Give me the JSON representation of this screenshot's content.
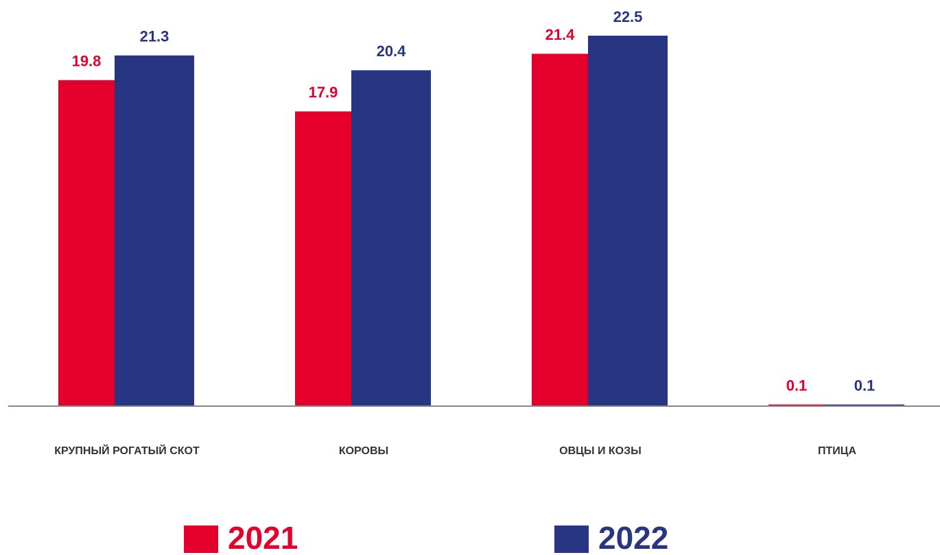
{
  "chart_data": {
    "type": "bar",
    "categories": [
      "КРУПНЫЙ РОГАТЫЙ СКОТ",
      "КОРОВЫ",
      "ОВЦЫ И КОЗЫ",
      "ПТИЦА"
    ],
    "series": [
      {
        "name": "2021",
        "color": "#e4002b",
        "values": [
          19.8,
          17.9,
          21.4,
          0.1
        ]
      },
      {
        "name": "2022",
        "color": "#283583",
        "values": [
          21.3,
          20.4,
          22.5,
          0.1
        ]
      }
    ],
    "legend": "bottom"
  }
}
